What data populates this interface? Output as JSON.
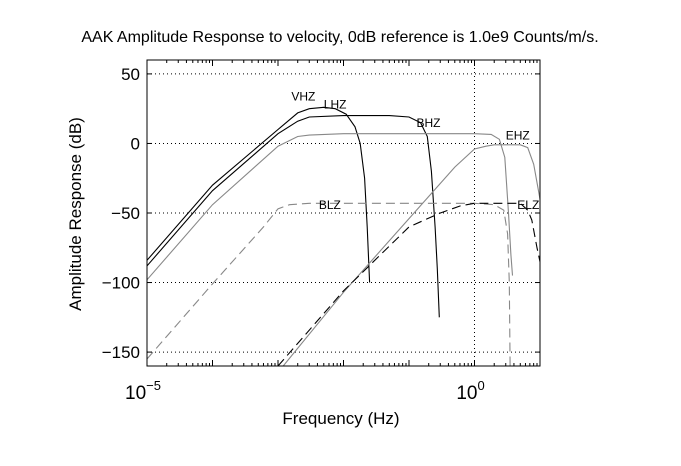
{
  "chart_data": {
    "type": "line",
    "title": "AAK Amplitude Response to velocity, 0dB reference is 1.0e9 Counts/m/s.",
    "xlabel": "Frequency (Hz)",
    "ylabel": "Amplitude Response (dB)",
    "xscale": "log",
    "xlim": [
      1e-05,
      10
    ],
    "ylim": [
      -160,
      60
    ],
    "x_tick_labels": [
      {
        "base": "10",
        "exp": "−5",
        "value": 1e-05
      },
      {
        "base": "10",
        "exp": "0",
        "value": 1
      }
    ],
    "y_ticks": [
      50,
      0,
      -50,
      -100,
      -150
    ],
    "y_tick_labels": [
      "50",
      "0",
      "−50",
      "−100",
      "−150"
    ],
    "grid": true,
    "series": [
      {
        "name": "VHZ",
        "color": "#000000",
        "style": "solid",
        "label_at": [
          0.0016,
          31
        ],
        "points": [
          [
            1e-05,
            -84
          ],
          [
            0.0001,
            -30
          ],
          [
            0.001,
            10
          ],
          [
            0.002,
            22
          ],
          [
            0.003,
            25
          ],
          [
            0.005,
            26
          ],
          [
            0.0075,
            25
          ],
          [
            0.011,
            21
          ],
          [
            0.015,
            12
          ],
          [
            0.018,
            0
          ],
          [
            0.021,
            -25
          ],
          [
            0.023,
            -60
          ],
          [
            0.025,
            -100
          ]
        ]
      },
      {
        "name": "LHZ",
        "color": "#000000",
        "style": "solid",
        "label_at": [
          0.005,
          25
        ],
        "points": [
          [
            1e-05,
            -88
          ],
          [
            0.0001,
            -34
          ],
          [
            0.001,
            7
          ],
          [
            0.002,
            16
          ],
          [
            0.003,
            19
          ],
          [
            0.01,
            20
          ],
          [
            0.05,
            20
          ],
          [
            0.1,
            19
          ],
          [
            0.15,
            15
          ],
          [
            0.19,
            5
          ],
          [
            0.22,
            -20
          ],
          [
            0.25,
            -60
          ],
          [
            0.27,
            -90
          ],
          [
            0.29,
            -125
          ]
        ]
      },
      {
        "name": "BHZ",
        "color": "#888888",
        "style": "solid",
        "label_at": [
          0.13,
          12
        ],
        "points": [
          [
            1e-05,
            -98
          ],
          [
            0.0001,
            -44
          ],
          [
            0.001,
            -2
          ],
          [
            0.002,
            5
          ],
          [
            0.003,
            6
          ],
          [
            0.01,
            7
          ],
          [
            0.1,
            7
          ],
          [
            1,
            7
          ],
          [
            1.8,
            6.5
          ],
          [
            2.4,
            3
          ],
          [
            2.9,
            -10
          ],
          [
            3.3,
            -50
          ],
          [
            3.6,
            -80
          ],
          [
            3.8,
            -95
          ]
        ]
      },
      {
        "name": "EHZ",
        "color": "#888888",
        "style": "solid",
        "label_at": [
          3,
          3
        ],
        "points": [
          [
            0.0012,
            -160
          ],
          [
            0.01,
            -107
          ],
          [
            0.1,
            -54
          ],
          [
            0.5,
            -17
          ],
          [
            1,
            -4
          ],
          [
            1.5,
            -2
          ],
          [
            2,
            -1
          ],
          [
            5,
            -1
          ],
          [
            6.5,
            -3
          ],
          [
            8,
            -15
          ],
          [
            10,
            -40
          ]
        ]
      },
      {
        "name": "BLZ",
        "color": "#888888",
        "style": "dashed",
        "label_at": [
          0.0042,
          -47
        ],
        "points": [
          [
            1e-05,
            -155
          ],
          [
            0.0001,
            -101
          ],
          [
            0.0006,
            -60
          ],
          [
            0.001,
            -47
          ],
          [
            0.0015,
            -44
          ],
          [
            0.003,
            -43
          ],
          [
            0.01,
            -43
          ],
          [
            0.1,
            -43
          ],
          [
            1,
            -43
          ],
          [
            2,
            -44
          ],
          [
            2.8,
            -48
          ],
          [
            3.2,
            -65
          ],
          [
            3.4,
            -100
          ],
          [
            3.5,
            -160
          ]
        ]
      },
      {
        "name": "ELZ",
        "color": "#000000",
        "style": "dashed",
        "label_at": [
          4.5,
          -47
        ],
        "points": [
          [
            0.001,
            -160
          ],
          [
            0.01,
            -106
          ],
          [
            0.1,
            -60
          ],
          [
            0.3,
            -50
          ],
          [
            0.6,
            -45
          ],
          [
            1,
            -43
          ],
          [
            3,
            -43
          ],
          [
            5,
            -43
          ],
          [
            6.5,
            -48
          ],
          [
            7.5,
            -55
          ],
          [
            9,
            -75
          ],
          [
            10,
            -85
          ]
        ]
      }
    ]
  }
}
